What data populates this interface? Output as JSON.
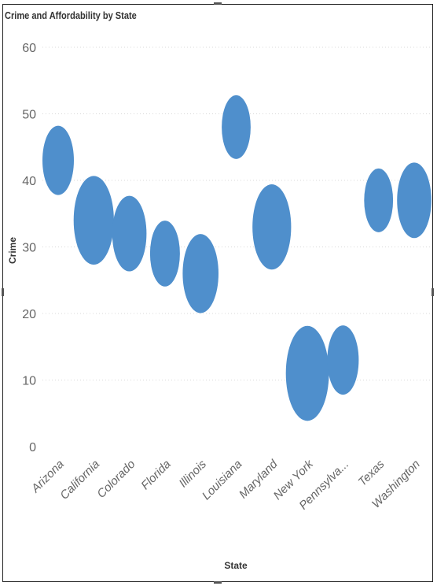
{
  "chart_data": {
    "type": "scatter",
    "title": "Crime and Affordability by State",
    "xlabel": "State",
    "ylabel": "Crime",
    "ylim": [
      0,
      60
    ],
    "yticks": [
      "0",
      "10",
      "20",
      "30",
      "40",
      "50",
      "60"
    ],
    "categories": [
      "Arizona",
      "California",
      "Colorado",
      "Florida",
      "Illinois",
      "Louisiana",
      "Maryland",
      "New York",
      "Pennsylva...",
      "Texas",
      "Washington"
    ],
    "values": [
      43,
      34,
      32,
      29,
      26,
      48,
      33,
      11,
      13,
      37,
      37
    ],
    "sizes": [
      1.0,
      1.28,
      1.09,
      0.95,
      1.14,
      0.92,
      1.23,
      1.37,
      1.0,
      0.92,
      1.09
    ],
    "grid": true,
    "legend": "none",
    "color": "#4f8fcc"
  }
}
